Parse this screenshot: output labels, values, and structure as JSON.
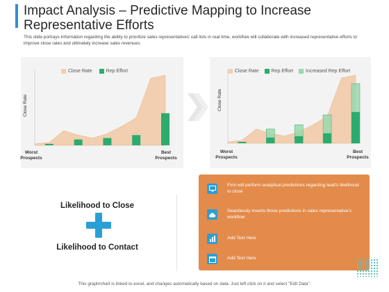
{
  "slide": {
    "title": "Impact Analysis – Predictive Mapping to Increase Representative Efforts",
    "subtitle": "This slide portrays information regarding the ability to prioritize sales representatives' call lists in real time, workflow will collaborate with increased representative efforts to improve close rates and ultimately increase sales revenues.",
    "footer": "This graph/chart is linked to excel, and changes automatically based on data. Just left click on it and select \"Edit Data\"."
  },
  "colors": {
    "accent": "#2f8fd0",
    "close_rate": "#f2cfb0",
    "rep_effort": "#2cab6e",
    "increased_rep_effort": "#9ad8ad",
    "orange_panel": "#e38b4b",
    "icon_blue": "#2e9dd2",
    "plus": "#2a9fd6"
  },
  "chart_data": [
    {
      "type": "area",
      "ylabel": "Close Rate",
      "x_start_label": [
        "Worst",
        "Prospects"
      ],
      "x_end_label": [
        "Best",
        "Prospects"
      ],
      "x": [
        1,
        2,
        3,
        4,
        5,
        6,
        7,
        8,
        9,
        10
      ],
      "series": [
        {
          "name": "Close Rate",
          "type": "area",
          "values": [
            1,
            2,
            10,
            7,
            5,
            8,
            13,
            19,
            46,
            48
          ]
        },
        {
          "name": "Rep Effort",
          "type": "bar",
          "values": [
            0,
            1,
            0,
            4,
            0,
            5,
            0,
            7,
            0,
            22
          ]
        }
      ],
      "ylim": [
        0,
        50
      ]
    },
    {
      "type": "area",
      "ylabel": "Close Rate",
      "x_start_label": [
        "Worst",
        "Prospects"
      ],
      "x_end_label": [
        "Best",
        "Prospects"
      ],
      "x": [
        1,
        2,
        3,
        4,
        5,
        6,
        7,
        8,
        9,
        10
      ],
      "series": [
        {
          "name": "Close Rate",
          "type": "area",
          "values": [
            1,
            2,
            10,
            7,
            5,
            8,
            13,
            19,
            46,
            48
          ]
        },
        {
          "name": "Rep Effort",
          "type": "bar",
          "values": [
            0,
            1,
            0,
            4,
            0,
            5,
            0,
            7,
            0,
            22
          ]
        },
        {
          "name": "Increased Rep Effort",
          "type": "bar",
          "values": [
            0,
            0,
            0,
            10,
            0,
            13,
            0,
            20,
            0,
            42
          ]
        }
      ],
      "ylim": [
        0,
        50
      ]
    }
  ],
  "likelihood": {
    "top": "Likelihood to Close",
    "bottom": "Likelihood to Contact"
  },
  "points": [
    {
      "icon": "monitor-icon",
      "text": "Firm will perform analytical predictions regarding lead's likelihood to close"
    },
    {
      "icon": "cloud-icon",
      "text": "Seamlessly inserts those predictions in sales representative's workflow"
    },
    {
      "icon": "chart-icon",
      "text": "Add Text Here"
    },
    {
      "icon": "calendar-icon",
      "text": "Add Text Here"
    }
  ]
}
